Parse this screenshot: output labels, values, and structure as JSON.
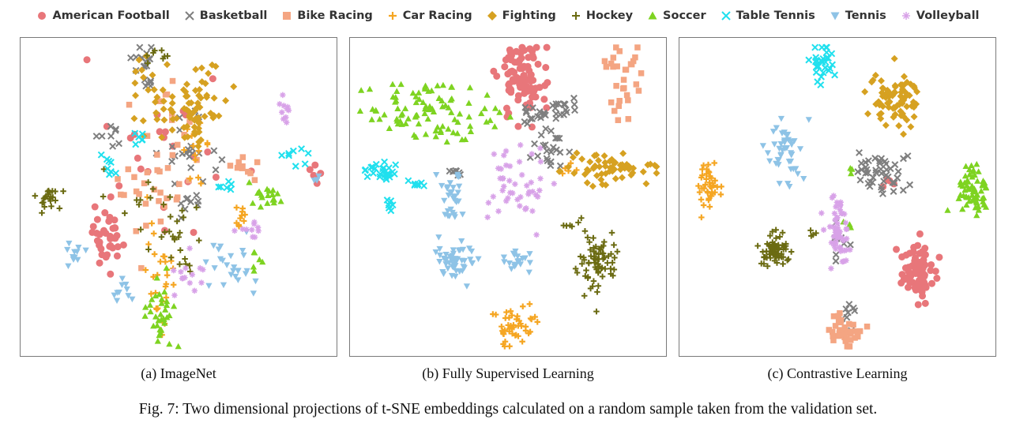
{
  "chart_data": {
    "type": "scatter",
    "legend": {
      "placement": "top"
    },
    "series": [
      {
        "name": "American Football",
        "color": "#E8767A",
        "marker": "circle"
      },
      {
        "name": "Basketball",
        "color": "#7F7F7F",
        "marker": "x"
      },
      {
        "name": "Bike Racing",
        "color": "#F4A582",
        "marker": "square"
      },
      {
        "name": "Car Racing",
        "color": "#F5A623",
        "marker": "plus"
      },
      {
        "name": "Fighting",
        "color": "#D6A121",
        "marker": "diamond"
      },
      {
        "name": "Hockey",
        "color": "#6B6B12",
        "marker": "cross"
      },
      {
        "name": "Soccer",
        "color": "#7ED321",
        "marker": "triangle-up"
      },
      {
        "name": "Table Tennis",
        "color": "#20E0EE",
        "marker": "x"
      },
      {
        "name": "Tennis",
        "color": "#8EC3E6",
        "marker": "triangle-down"
      },
      {
        "name": "Volleyball",
        "color": "#D8A2E8",
        "marker": "star"
      }
    ],
    "panels": [
      {
        "caption": "(a) ImageNet",
        "clusters": [
          {
            "series": 0,
            "cx": 0.27,
            "cy": 0.62,
            "sx": 0.03,
            "sy": 0.05,
            "n": 35
          },
          {
            "series": 0,
            "cx": 0.45,
            "cy": 0.4,
            "sx": 0.12,
            "sy": 0.12,
            "n": 25
          },
          {
            "series": 0,
            "cx": 0.93,
            "cy": 0.43,
            "sx": 0.02,
            "sy": 0.02,
            "n": 6
          },
          {
            "series": 1,
            "cx": 0.4,
            "cy": 0.1,
            "sx": 0.025,
            "sy": 0.04,
            "n": 20
          },
          {
            "series": 1,
            "cx": 0.55,
            "cy": 0.35,
            "sx": 0.05,
            "sy": 0.05,
            "n": 22
          },
          {
            "series": 1,
            "cx": 0.28,
            "cy": 0.3,
            "sx": 0.02,
            "sy": 0.02,
            "n": 8
          },
          {
            "series": 1,
            "cx": 0.54,
            "cy": 0.52,
            "sx": 0.02,
            "sy": 0.03,
            "n": 10
          },
          {
            "series": 2,
            "cx": 0.42,
            "cy": 0.45,
            "sx": 0.07,
            "sy": 0.1,
            "n": 40
          },
          {
            "series": 2,
            "cx": 0.71,
            "cy": 0.4,
            "sx": 0.03,
            "sy": 0.02,
            "n": 10
          },
          {
            "series": 3,
            "cx": 0.44,
            "cy": 0.73,
            "sx": 0.02,
            "sy": 0.08,
            "n": 30
          },
          {
            "series": 3,
            "cx": 0.56,
            "cy": 0.33,
            "sx": 0.03,
            "sy": 0.05,
            "n": 15
          },
          {
            "series": 3,
            "cx": 0.7,
            "cy": 0.56,
            "sx": 0.015,
            "sy": 0.03,
            "n": 10
          },
          {
            "series": 4,
            "cx": 0.5,
            "cy": 0.18,
            "sx": 0.08,
            "sy": 0.06,
            "n": 60
          },
          {
            "series": 4,
            "cx": 0.56,
            "cy": 0.27,
            "sx": 0.05,
            "sy": 0.04,
            "n": 25
          },
          {
            "series": 5,
            "cx": 0.09,
            "cy": 0.51,
            "sx": 0.03,
            "sy": 0.02,
            "n": 22
          },
          {
            "series": 5,
            "cx": 0.5,
            "cy": 0.63,
            "sx": 0.03,
            "sy": 0.05,
            "n": 22
          },
          {
            "series": 5,
            "cx": 0.45,
            "cy": 0.05,
            "sx": 0.03,
            "sy": 0.02,
            "n": 8
          },
          {
            "series": 5,
            "cx": 0.38,
            "cy": 0.52,
            "sx": 0.05,
            "sy": 0.08,
            "n": 12
          },
          {
            "series": 6,
            "cx": 0.77,
            "cy": 0.5,
            "sx": 0.025,
            "sy": 0.02,
            "n": 18
          },
          {
            "series": 6,
            "cx": 0.45,
            "cy": 0.88,
            "sx": 0.025,
            "sy": 0.06,
            "n": 35
          },
          {
            "series": 6,
            "cx": 0.74,
            "cy": 0.7,
            "sx": 0.01,
            "sy": 0.015,
            "n": 6
          },
          {
            "series": 7,
            "cx": 0.87,
            "cy": 0.37,
            "sx": 0.02,
            "sy": 0.015,
            "n": 8
          },
          {
            "series": 7,
            "cx": 0.28,
            "cy": 0.4,
            "sx": 0.015,
            "sy": 0.02,
            "n": 8
          },
          {
            "series": 7,
            "cx": 0.38,
            "cy": 0.3,
            "sx": 0.015,
            "sy": 0.02,
            "n": 6
          },
          {
            "series": 7,
            "cx": 0.64,
            "cy": 0.47,
            "sx": 0.02,
            "sy": 0.02,
            "n": 6
          },
          {
            "series": 8,
            "cx": 0.18,
            "cy": 0.68,
            "sx": 0.015,
            "sy": 0.02,
            "n": 12
          },
          {
            "series": 8,
            "cx": 0.65,
            "cy": 0.72,
            "sx": 0.04,
            "sy": 0.05,
            "n": 25
          },
          {
            "series": 8,
            "cx": 0.32,
            "cy": 0.8,
            "sx": 0.03,
            "sy": 0.02,
            "n": 10
          },
          {
            "series": 8,
            "cx": 0.94,
            "cy": 0.44,
            "sx": 0.01,
            "sy": 0.01,
            "n": 4
          },
          {
            "series": 9,
            "cx": 0.84,
            "cy": 0.24,
            "sx": 0.012,
            "sy": 0.025,
            "n": 10
          },
          {
            "series": 9,
            "cx": 0.52,
            "cy": 0.75,
            "sx": 0.03,
            "sy": 0.03,
            "n": 14
          },
          {
            "series": 9,
            "cx": 0.73,
            "cy": 0.6,
            "sx": 0.03,
            "sy": 0.02,
            "n": 10
          }
        ]
      },
      {
        "caption": "(b) Fully Supervised Learning",
        "clusters": [
          {
            "series": 0,
            "cx": 0.55,
            "cy": 0.12,
            "sx": 0.04,
            "sy": 0.06,
            "n": 90
          },
          {
            "series": 1,
            "cx": 0.58,
            "cy": 0.24,
            "sx": 0.03,
            "sy": 0.02,
            "n": 15
          },
          {
            "series": 1,
            "cx": 0.68,
            "cy": 0.22,
            "sx": 0.02,
            "sy": 0.02,
            "n": 15
          },
          {
            "series": 1,
            "cx": 0.64,
            "cy": 0.34,
            "sx": 0.03,
            "sy": 0.03,
            "n": 22
          },
          {
            "series": 1,
            "cx": 0.33,
            "cy": 0.42,
            "sx": 0.01,
            "sy": 0.01,
            "n": 8
          },
          {
            "series": 2,
            "cx": 0.88,
            "cy": 0.14,
            "sx": 0.03,
            "sy": 0.07,
            "n": 30
          },
          {
            "series": 3,
            "cx": 0.52,
            "cy": 0.91,
            "sx": 0.03,
            "sy": 0.035,
            "n": 45
          },
          {
            "series": 3,
            "cx": 0.69,
            "cy": 0.41,
            "sx": 0.015,
            "sy": 0.02,
            "n": 5
          },
          {
            "series": 4,
            "cx": 0.82,
            "cy": 0.41,
            "sx": 0.07,
            "sy": 0.025,
            "n": 60
          },
          {
            "series": 5,
            "cx": 0.78,
            "cy": 0.7,
            "sx": 0.03,
            "sy": 0.05,
            "n": 70
          },
          {
            "series": 5,
            "cx": 0.7,
            "cy": 0.59,
            "sx": 0.015,
            "sy": 0.01,
            "n": 5
          },
          {
            "series": 6,
            "cx": 0.23,
            "cy": 0.22,
            "sx": 0.1,
            "sy": 0.05,
            "n": 90
          },
          {
            "series": 6,
            "cx": 0.46,
            "cy": 0.25,
            "sx": 0.02,
            "sy": 0.02,
            "n": 6
          },
          {
            "series": 7,
            "cx": 0.1,
            "cy": 0.42,
            "sx": 0.035,
            "sy": 0.015,
            "n": 25
          },
          {
            "series": 7,
            "cx": 0.13,
            "cy": 0.53,
            "sx": 0.01,
            "sy": 0.01,
            "n": 6
          },
          {
            "series": 7,
            "cx": 0.22,
            "cy": 0.46,
            "sx": 0.01,
            "sy": 0.01,
            "n": 6
          },
          {
            "series": 8,
            "cx": 0.33,
            "cy": 0.51,
            "sx": 0.02,
            "sy": 0.04,
            "n": 30
          },
          {
            "series": 8,
            "cx": 0.33,
            "cy": 0.7,
            "sx": 0.03,
            "sy": 0.025,
            "n": 50
          },
          {
            "series": 8,
            "cx": 0.53,
            "cy": 0.7,
            "sx": 0.02,
            "sy": 0.015,
            "n": 20
          },
          {
            "series": 9,
            "cx": 0.53,
            "cy": 0.47,
            "sx": 0.05,
            "sy": 0.05,
            "n": 45
          }
        ]
      },
      {
        "caption": "(c) Contrastive Learning",
        "clusters": [
          {
            "series": 0,
            "cx": 0.75,
            "cy": 0.73,
            "sx": 0.025,
            "sy": 0.04,
            "n": 85
          },
          {
            "series": 0,
            "cx": 0.66,
            "cy": 0.46,
            "sx": 0.01,
            "sy": 0.01,
            "n": 4
          },
          {
            "series": 1,
            "cx": 0.63,
            "cy": 0.42,
            "sx": 0.035,
            "sy": 0.035,
            "n": 45
          },
          {
            "series": 1,
            "cx": 0.51,
            "cy": 0.63,
            "sx": 0.015,
            "sy": 0.04,
            "n": 8
          },
          {
            "series": 1,
            "cx": 0.54,
            "cy": 0.86,
            "sx": 0.015,
            "sy": 0.02,
            "n": 8
          },
          {
            "series": 2,
            "cx": 0.52,
            "cy": 0.92,
            "sx": 0.025,
            "sy": 0.04,
            "n": 45
          },
          {
            "series": 3,
            "cx": 0.09,
            "cy": 0.48,
            "sx": 0.02,
            "sy": 0.04,
            "n": 40
          },
          {
            "series": 4,
            "cx": 0.68,
            "cy": 0.18,
            "sx": 0.04,
            "sy": 0.05,
            "n": 80
          },
          {
            "series": 5,
            "cx": 0.3,
            "cy": 0.67,
            "sx": 0.025,
            "sy": 0.03,
            "n": 70
          },
          {
            "series": 5,
            "cx": 0.42,
            "cy": 0.62,
            "sx": 0.01,
            "sy": 0.01,
            "n": 4
          },
          {
            "series": 6,
            "cx": 0.93,
            "cy": 0.48,
            "sx": 0.025,
            "sy": 0.035,
            "n": 65
          },
          {
            "series": 6,
            "cx": 0.53,
            "cy": 0.58,
            "sx": 0.01,
            "sy": 0.01,
            "n": 3
          },
          {
            "series": 6,
            "cx": 0.54,
            "cy": 0.41,
            "sx": 0.01,
            "sy": 0.01,
            "n": 3
          },
          {
            "series": 7,
            "cx": 0.45,
            "cy": 0.09,
            "sx": 0.02,
            "sy": 0.04,
            "n": 30
          },
          {
            "series": 8,
            "cx": 0.34,
            "cy": 0.36,
            "sx": 0.035,
            "sy": 0.05,
            "n": 45
          },
          {
            "series": 9,
            "cx": 0.5,
            "cy": 0.62,
            "sx": 0.02,
            "sy": 0.05,
            "n": 55
          }
        ]
      }
    ]
  },
  "figure_caption": "Fig. 7: Two dimensional projections of t-SNE embeddings calculated on a random sample taken from the validation set."
}
